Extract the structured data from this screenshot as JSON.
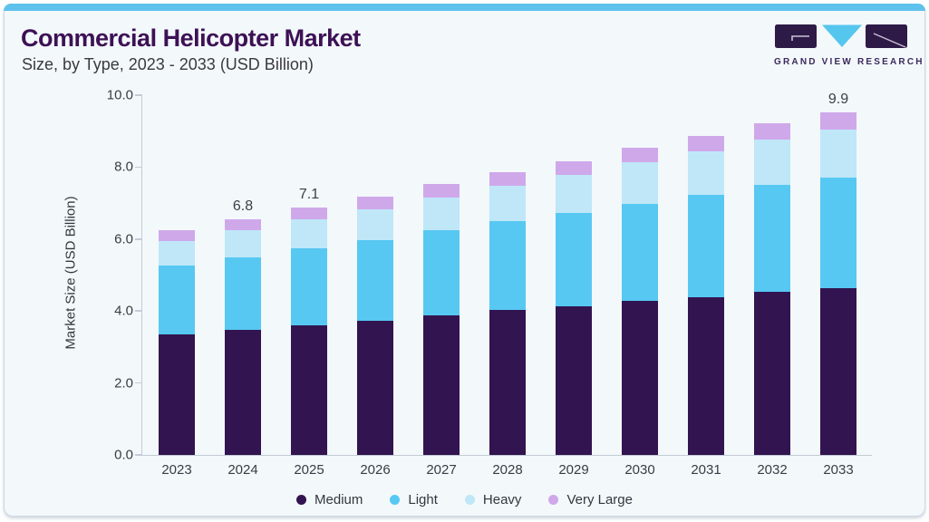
{
  "header": {
    "title": "Commercial Helicopter Market",
    "subtitle": "Size, by Type, 2023 - 2033 (USD Billion)"
  },
  "logo": {
    "text": "GRAND VIEW RESEARCH"
  },
  "colors": {
    "accent_strip": "#5fc2ec",
    "title_purple": "#3d1155",
    "logo_purple": "#2e1a47",
    "logo_triangle": "#55c6ee",
    "axis_line": "#c2ccd6",
    "medium": "#321450",
    "light": "#57c8f2",
    "heavy": "#bfe7f8",
    "very_large": "#cfa8ea"
  },
  "chart_data": {
    "type": "bar",
    "stacked": true,
    "title": "Commercial Helicopter Market",
    "subtitle": "Size, by Type, 2023 - 2033 (USD Billion)",
    "categories": [
      "2023",
      "2024",
      "2025",
      "2026",
      "2027",
      "2028",
      "2029",
      "2030",
      "2031",
      "2032",
      "2033"
    ],
    "series": [
      {
        "name": "Medium",
        "color": "#321450",
        "values": [
          3.48,
          3.59,
          3.73,
          3.86,
          4.02,
          4.17,
          4.29,
          4.43,
          4.55,
          4.69,
          4.81
        ]
      },
      {
        "name": "Light",
        "color": "#57c8f2",
        "values": [
          1.97,
          2.11,
          2.23,
          2.33,
          2.45,
          2.56,
          2.67,
          2.81,
          2.94,
          3.08,
          3.19
        ]
      },
      {
        "name": "Heavy",
        "color": "#bfe7f8",
        "values": [
          0.71,
          0.77,
          0.83,
          0.89,
          0.95,
          1.02,
          1.1,
          1.19,
          1.25,
          1.31,
          1.38
        ]
      },
      {
        "name": "Very Large",
        "color": "#cfa8ea",
        "values": [
          0.32,
          0.33,
          0.34,
          0.35,
          0.38,
          0.4,
          0.41,
          0.42,
          0.44,
          0.47,
          0.5
        ]
      }
    ],
    "totals_approx": [
      6.5,
      6.8,
      7.1,
      7.4,
      7.8,
      8.2,
      8.5,
      8.9,
      9.2,
      9.6,
      9.9
    ],
    "value_labels": [
      {
        "category": "2024",
        "text": "6.8"
      },
      {
        "category": "2025",
        "text": "7.1"
      },
      {
        "category": "2033",
        "text": "9.9"
      }
    ],
    "ylabel": "Market Size (USD Billion)",
    "xlabel": "",
    "y_ticks": [
      "0.0",
      "2.0",
      "4.0",
      "6.0",
      "8.0",
      "10.0"
    ],
    "ylim": [
      0,
      10
    ],
    "grid": false,
    "legend_entries": [
      "Medium",
      "Light",
      "Heavy",
      "Very Large"
    ],
    "legend_position": "bottom"
  }
}
